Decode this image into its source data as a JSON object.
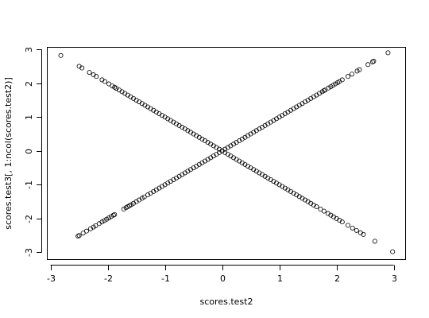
{
  "chart_data": {
    "type": "scatter",
    "title": "",
    "xlabel": "scores.test2",
    "ylabel": "scores.test3[, 1:ncol(scores.test2)]",
    "xlim": [
      -3.05,
      3.2
    ],
    "ylim": [
      -3.2,
      3.05
    ],
    "xticks": [
      -3,
      -2,
      -1,
      0,
      1,
      2,
      3
    ],
    "yticks": [
      -3,
      -2,
      -1,
      0,
      1,
      2,
      3
    ],
    "grid": false,
    "marker": "open-circle",
    "series": [
      {
        "x": [
          -2.52,
          -2.5,
          -2.43,
          -2.37,
          -2.3,
          -2.25,
          -2.21,
          -2.15,
          -2.1,
          -2.06,
          -2.02,
          -1.98,
          -1.94,
          -1.9,
          -1.88,
          -1.72,
          -1.68,
          -1.65,
          -1.62,
          -1.59,
          -1.55,
          -1.5,
          -1.45,
          -1.4,
          -1.36,
          -1.3,
          -1.25,
          -1.2,
          -1.15,
          -1.1,
          -1.05,
          -1.0,
          -0.95,
          -0.9,
          -0.85,
          -0.8,
          -0.75,
          -0.7,
          -0.65,
          -0.6,
          -0.55,
          -0.5,
          -0.45,
          -0.4,
          -0.35,
          -0.3,
          -0.25,
          -0.2,
          -0.15,
          -0.1,
          -0.05,
          0.0,
          0.05,
          0.1,
          0.15,
          0.2,
          0.25,
          0.3,
          0.35,
          0.4,
          0.45,
          0.5,
          0.55,
          0.6,
          0.65,
          0.7,
          0.75,
          0.8,
          0.85,
          0.9,
          0.95,
          1.0,
          1.05,
          1.1,
          1.15,
          1.2,
          1.25,
          1.3,
          1.35,
          1.4,
          1.45,
          1.5,
          1.55,
          1.6,
          1.65,
          1.7,
          1.75,
          1.78,
          1.8,
          1.86,
          1.9,
          1.94,
          1.98,
          2.02,
          2.05,
          2.1,
          2.2,
          2.27,
          2.36,
          2.4,
          2.55,
          2.63,
          2.65,
          2.9
        ],
        "y": [
          -2.52,
          -2.5,
          -2.43,
          -2.37,
          -2.3,
          -2.25,
          -2.21,
          -2.15,
          -2.1,
          -2.06,
          -2.02,
          -1.98,
          -1.94,
          -1.9,
          -1.88,
          -1.72,
          -1.68,
          -1.65,
          -1.62,
          -1.59,
          -1.55,
          -1.5,
          -1.45,
          -1.4,
          -1.36,
          -1.3,
          -1.25,
          -1.2,
          -1.15,
          -1.1,
          -1.05,
          -1.0,
          -0.95,
          -0.9,
          -0.85,
          -0.8,
          -0.75,
          -0.7,
          -0.65,
          -0.6,
          -0.55,
          -0.5,
          -0.45,
          -0.4,
          -0.35,
          -0.3,
          -0.25,
          -0.2,
          -0.15,
          -0.1,
          -0.05,
          0.0,
          0.05,
          0.1,
          0.15,
          0.2,
          0.25,
          0.3,
          0.35,
          0.4,
          0.45,
          0.5,
          0.55,
          0.6,
          0.65,
          0.7,
          0.75,
          0.8,
          0.85,
          0.9,
          0.95,
          1.0,
          1.05,
          1.1,
          1.15,
          1.2,
          1.25,
          1.3,
          1.35,
          1.4,
          1.45,
          1.5,
          1.55,
          1.6,
          1.65,
          1.7,
          1.75,
          1.78,
          1.8,
          1.86,
          1.9,
          1.94,
          1.98,
          2.02,
          2.05,
          2.1,
          2.2,
          2.27,
          2.36,
          2.4,
          2.55,
          2.63,
          2.65,
          2.9
        ]
      },
      {
        "x": [
          -2.82,
          -2.5,
          -2.45,
          -2.32,
          -2.25,
          -2.2,
          -2.1,
          -2.05,
          -1.98,
          -1.92,
          -1.88,
          -1.85,
          -1.8,
          -1.75,
          -1.7,
          -1.65,
          -1.6,
          -1.55,
          -1.5,
          -1.45,
          -1.4,
          -1.35,
          -1.3,
          -1.25,
          -1.2,
          -1.15,
          -1.1,
          -1.05,
          -1.0,
          -0.95,
          -0.9,
          -0.85,
          -0.8,
          -0.75,
          -0.7,
          -0.65,
          -0.6,
          -0.55,
          -0.5,
          -0.45,
          -0.4,
          -0.35,
          -0.3,
          -0.25,
          -0.2,
          -0.15,
          -0.1,
          -0.05,
          0.0,
          0.05,
          0.1,
          0.15,
          0.2,
          0.25,
          0.3,
          0.35,
          0.4,
          0.45,
          0.5,
          0.55,
          0.6,
          0.65,
          0.7,
          0.75,
          0.8,
          0.85,
          0.9,
          0.95,
          1.0,
          1.05,
          1.1,
          1.15,
          1.2,
          1.25,
          1.3,
          1.35,
          1.4,
          1.45,
          1.5,
          1.55,
          1.6,
          1.65,
          1.72,
          1.78,
          1.85,
          1.9,
          1.95,
          2.0,
          2.05,
          2.1,
          2.2,
          2.28,
          2.35,
          2.42,
          2.47,
          2.67,
          2.98
        ],
        "y": [
          2.82,
          2.5,
          2.45,
          2.32,
          2.25,
          2.2,
          2.1,
          2.05,
          1.98,
          1.92,
          1.88,
          1.85,
          1.8,
          1.75,
          1.7,
          1.65,
          1.6,
          1.55,
          1.5,
          1.45,
          1.4,
          1.35,
          1.3,
          1.25,
          1.2,
          1.15,
          1.1,
          1.05,
          1.0,
          0.95,
          0.9,
          0.85,
          0.8,
          0.75,
          0.7,
          0.65,
          0.6,
          0.55,
          0.5,
          0.45,
          0.4,
          0.35,
          0.3,
          0.25,
          0.2,
          0.15,
          0.1,
          0.05,
          0.0,
          -0.05,
          -0.1,
          -0.15,
          -0.2,
          -0.25,
          -0.3,
          -0.35,
          -0.4,
          -0.45,
          -0.5,
          -0.55,
          -0.6,
          -0.65,
          -0.7,
          -0.75,
          -0.8,
          -0.85,
          -0.9,
          -0.95,
          -1.0,
          -1.05,
          -1.1,
          -1.15,
          -1.2,
          -1.25,
          -1.3,
          -1.35,
          -1.4,
          -1.45,
          -1.5,
          -1.55,
          -1.6,
          -1.65,
          -1.72,
          -1.78,
          -1.85,
          -1.9,
          -1.95,
          -2.0,
          -2.05,
          -2.1,
          -2.2,
          -2.28,
          -2.35,
          -2.42,
          -2.47,
          -2.67,
          -2.98
        ]
      }
    ]
  }
}
